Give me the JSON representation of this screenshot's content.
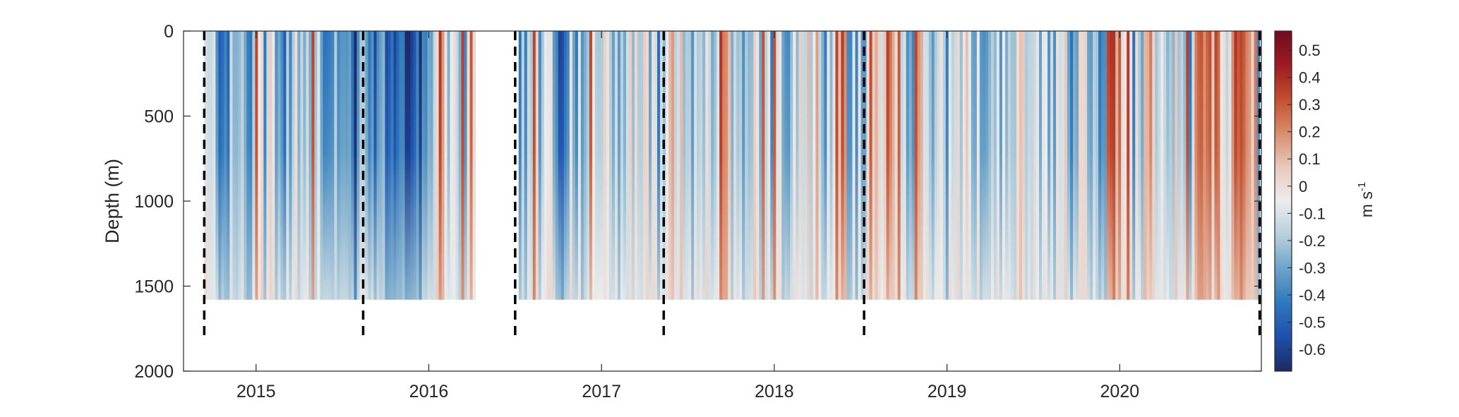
{
  "chart_data": {
    "type": "heatmap",
    "title": "",
    "xlabel": "",
    "ylabel": "Depth (m)",
    "x_ticks": [
      "2015",
      "2016",
      "2017",
      "2018",
      "2019",
      "2020"
    ],
    "y_ticks": [
      "0",
      "500",
      "1000",
      "1500",
      "2000"
    ],
    "xlim": [
      2014.58,
      2020.82
    ],
    "ylim": [
      0,
      2000
    ],
    "y_reversed": true,
    "data_depth_max": 1580,
    "data_segments": [
      [
        2014.7,
        2016.27
      ],
      [
        2016.52,
        2020.81
      ]
    ],
    "deployment_boundaries": [
      2014.7,
      2015.62,
      2016.5,
      2017.36,
      2018.52,
      2020.81
    ],
    "boundary_depth": 1800,
    "colorbar": {
      "label": "m s",
      "label_exponent": "-1",
      "ticks": [
        "0.5",
        "0.4",
        "0.3",
        "0.2",
        "0.1",
        "0",
        "-0.1",
        "-0.2",
        "-0.3",
        "-0.4",
        "-0.5",
        "-0.6"
      ],
      "range": [
        -0.68,
        0.57
      ],
      "colors": [
        "#1c2a63",
        "#1f4fae",
        "#2e78bc",
        "#6ba3c8",
        "#b7cfdc",
        "#ececec",
        "#e9c9bc",
        "#d98c6d",
        "#c2502f",
        "#9e1a22",
        "#6e0d1f"
      ]
    },
    "grid": false,
    "legend": "none"
  }
}
